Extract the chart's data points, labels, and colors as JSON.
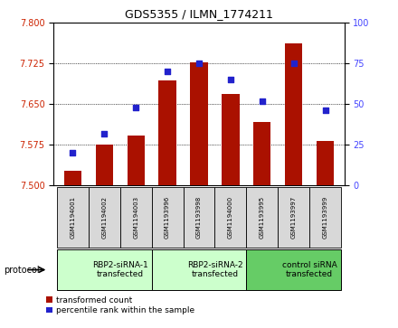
{
  "title": "GDS5355 / ILMN_1774211",
  "samples": [
    "GSM1194001",
    "GSM1194002",
    "GSM1194003",
    "GSM1193996",
    "GSM1193998",
    "GSM1194000",
    "GSM1193995",
    "GSM1193997",
    "GSM1193999"
  ],
  "bar_values": [
    7.527,
    7.575,
    7.592,
    7.693,
    7.727,
    7.668,
    7.617,
    7.763,
    7.582
  ],
  "percentile_values": [
    20,
    32,
    48,
    70,
    75,
    65,
    52,
    75,
    46
  ],
  "ylim_left": [
    7.5,
    7.8
  ],
  "ylim_right": [
    0,
    100
  ],
  "yticks_left": [
    7.5,
    7.575,
    7.65,
    7.725,
    7.8
  ],
  "yticks_right": [
    0,
    25,
    50,
    75,
    100
  ],
  "bar_color": "#AA1100",
  "dot_color": "#2222CC",
  "groups": [
    {
      "label": "RBP2-siRNA-1\ntransfected",
      "start": 0,
      "end": 3,
      "color": "#ccffcc"
    },
    {
      "label": "RBP2-siRNA-2\ntransfected",
      "start": 3,
      "end": 6,
      "color": "#ccffcc"
    },
    {
      "label": "control siRNA\ntransfected",
      "start": 6,
      "end": 9,
      "color": "#66cc66"
    }
  ],
  "protocol_label": "protocol",
  "legend_bar_label": "transformed count",
  "legend_dot_label": "percentile rank within the sample",
  "tick_label_color_left": "#CC2200",
  "tick_label_color_right": "#4444FF",
  "bar_width": 0.55,
  "cell_bg": "#d8d8d8",
  "title_fontsize": 9,
  "tick_fontsize": 7,
  "sample_fontsize": 5,
  "group_fontsize": 6.5
}
